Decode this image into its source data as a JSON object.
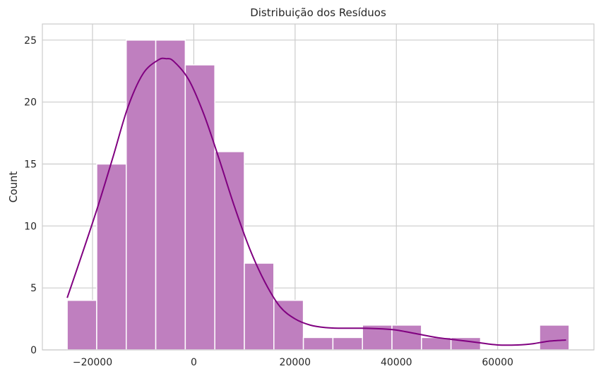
{
  "chart_data": {
    "type": "bar",
    "title": "Distribuição dos Resíduos",
    "xlabel": "",
    "ylabel": "Count",
    "bins": [
      {
        "x0": -25000,
        "x1": -19170,
        "count": 4
      },
      {
        "x0": -19170,
        "x1": -13340,
        "count": 15
      },
      {
        "x0": -13340,
        "x1": -7510,
        "count": 25
      },
      {
        "x0": -7510,
        "x1": -1680,
        "count": 25
      },
      {
        "x0": -1680,
        "x1": 4150,
        "count": 23
      },
      {
        "x0": 4150,
        "x1": 9980,
        "count": 16
      },
      {
        "x0": 9980,
        "x1": 15810,
        "count": 7
      },
      {
        "x0": 15810,
        "x1": 21640,
        "count": 4
      },
      {
        "x0": 21640,
        "x1": 27470,
        "count": 1
      },
      {
        "x0": 27470,
        "x1": 33300,
        "count": 1
      },
      {
        "x0": 33300,
        "x1": 39130,
        "count": 2
      },
      {
        "x0": 39130,
        "x1": 44960,
        "count": 2
      },
      {
        "x0": 44960,
        "x1": 50790,
        "count": 1
      },
      {
        "x0": 50790,
        "x1": 56620,
        "count": 1
      },
      {
        "x0": 56620,
        "x1": 62450,
        "count": 0
      },
      {
        "x0": 62450,
        "x1": 68280,
        "count": 0
      },
      {
        "x0": 68280,
        "x1": 74110,
        "count": 2
      }
    ],
    "kde": {
      "x": [
        -25000,
        -22000,
        -19000,
        -16000,
        -13000,
        -10000,
        -7000,
        -5500,
        -4000,
        -1000,
        2000,
        5000,
        8000,
        11000,
        14000,
        17000,
        20000,
        23000,
        26000,
        29000,
        33000,
        37000,
        40000,
        44000,
        48000,
        52000,
        56000,
        60000,
        64000,
        67000,
        70000,
        73500
      ],
      "y": [
        4.2,
        7.8,
        11.5,
        15.5,
        19.6,
        22.3,
        23.4,
        23.5,
        23.3,
        21.8,
        19.0,
        15.4,
        11.6,
        8.2,
        5.5,
        3.5,
        2.5,
        2.0,
        1.8,
        1.75,
        1.75,
        1.7,
        1.6,
        1.3,
        1.0,
        0.8,
        0.6,
        0.4,
        0.4,
        0.5,
        0.7,
        0.8
      ]
    },
    "xticks": [
      -20000,
      0,
      20000,
      40000,
      60000
    ],
    "xtick_labels": [
      "−20000",
      "0",
      "20000",
      "40000",
      "60000"
    ],
    "yticks": [
      0,
      5,
      10,
      15,
      20,
      25
    ],
    "ytick_labels": [
      "0",
      "5",
      "10",
      "15",
      "20",
      "25"
    ],
    "xlim": [
      -29900,
      79010
    ],
    "ylim": [
      0,
      26.3
    ],
    "grid": true,
    "colors": {
      "bar_fill": "#bf7fbf",
      "bar_edge": "#ffffff",
      "kde_line": "#800080",
      "grid": "#cccccc"
    }
  }
}
